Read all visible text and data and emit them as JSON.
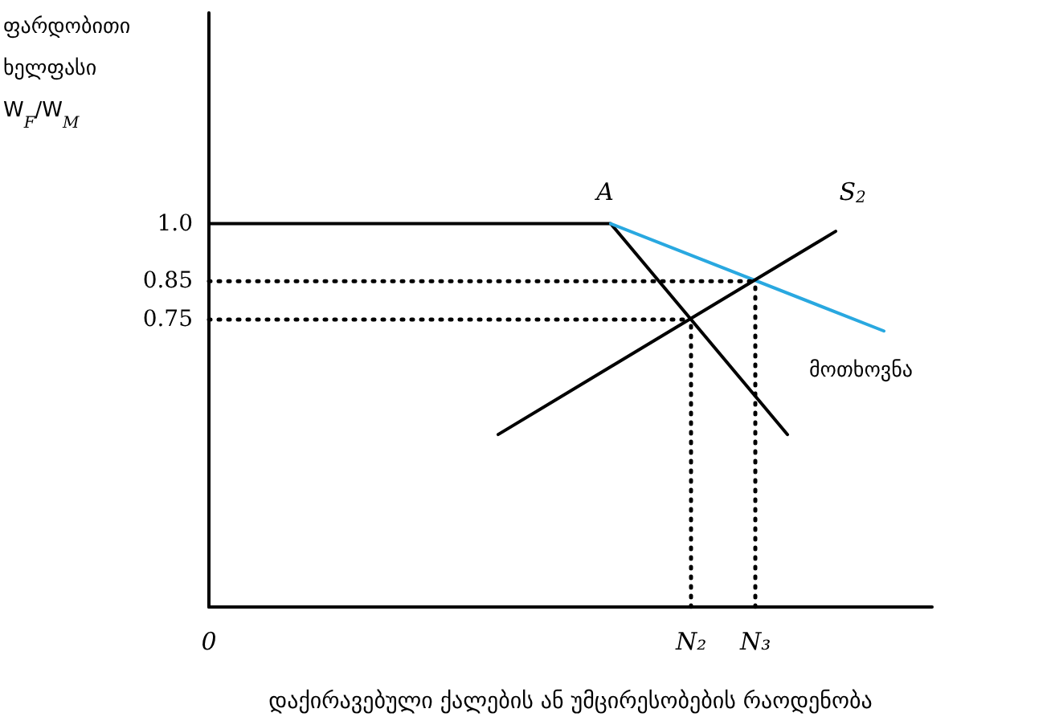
{
  "chart_data": {
    "type": "line",
    "xlabel": "დაქირავებული ქალების ან უმცირესობების რაოდენობა",
    "ylabel": "ფარდობითი\nხელფასი\nW$_{F}$/W$_{M}$",
    "categories": [
      "0",
      null,
      null,
      null,
      null,
      null,
      null,
      null,
      null,
      null,
      null,
      null,
      null,
      null,
      null,
      null,
      null,
      null,
      null,
      null,
      null,
      null,
      null,
      null,
      null,
      null,
      null,
      null,
      null,
      null,
      "N₂",
      null,
      null,
      null,
      "N₃",
      null,
      null,
      null,
      null,
      null,
      null,
      null,
      null,
      null,
      null,
      null
    ],
    "ylim": [
      0,
      1.55
    ],
    "yticks": [
      {
        "value": 0.75,
        "label": "0.75"
      },
      {
        "value": 0.85,
        "label": "0.85"
      },
      {
        "value": 1,
        "label": "1.0"
      }
    ],
    "grid": false,
    "series": [
      {
        "color": "#000000",
        "values": [
          1,
          null,
          null,
          null,
          null,
          null,
          null,
          null,
          null,
          null,
          null,
          null,
          null,
          null,
          null,
          null,
          null,
          null,
          null,
          null,
          null,
          null,
          null,
          null,
          null,
          1,
          null,
          null,
          null,
          null,
          null,
          null,
          null,
          null,
          null,
          null,
          0.45,
          null,
          null,
          null,
          null,
          null,
          null,
          null,
          null,
          null
        ]
      },
      {
        "color": "#29a8e0",
        "values": [
          null,
          null,
          null,
          null,
          null,
          null,
          null,
          null,
          null,
          null,
          null,
          null,
          null,
          null,
          null,
          null,
          null,
          null,
          null,
          null,
          null,
          null,
          null,
          null,
          null,
          1,
          null,
          null,
          null,
          null,
          null,
          null,
          null,
          null,
          null,
          null,
          null,
          null,
          null,
          null,
          null,
          null,
          0.72,
          null,
          null,
          null
        ]
      },
      {
        "color": "#000000",
        "values": [
          null,
          null,
          null,
          null,
          null,
          null,
          null,
          null,
          null,
          null,
          null,
          null,
          null,
          null,
          null,
          null,
          null,
          null,
          0.45,
          null,
          null,
          null,
          null,
          null,
          null,
          null,
          null,
          null,
          null,
          null,
          null,
          null,
          null,
          null,
          null,
          null,
          null,
          null,
          null,
          0.98,
          null,
          null,
          null,
          null,
          null,
          null
        ]
      },
      {
        "color": "#000000",
        "line_style": "dotted",
        "values": [
          0.85,
          null,
          null,
          null,
          null,
          null,
          null,
          null,
          null,
          null,
          null,
          null,
          null,
          null,
          null,
          null,
          null,
          null,
          null,
          null,
          null,
          null,
          null,
          null,
          null,
          null,
          null,
          null,
          null,
          null,
          null,
          null,
          null,
          null,
          0.85,
          null,
          null,
          null,
          null,
          null,
          null,
          null,
          null,
          null,
          null,
          null
        ]
      },
      {
        "color": "#000000",
        "line_style": "dotted",
        "values": [
          0.75,
          null,
          null,
          null,
          null,
          null,
          null,
          null,
          null,
          null,
          null,
          null,
          null,
          null,
          null,
          null,
          null,
          null,
          null,
          null,
          null,
          null,
          null,
          null,
          null,
          null,
          null,
          null,
          null,
          null,
          0.75,
          null,
          null,
          null,
          null,
          null,
          null,
          null,
          null,
          null,
          null,
          null,
          null,
          null,
          null,
          null
        ]
      },
      {
        "color": "#000000",
        "line_style": "dotted",
        "x": [
          "N₂",
          "N₂"
        ],
        "values": [
          0,
          0.75
        ]
      },
      {
        "color": "#000000",
        "line_style": "dotted",
        "x": [
          "N₃",
          "N₃"
        ],
        "values": [
          0,
          0.85
        ]
      }
    ],
    "annotations": [
      "A",
      "S$_{2}$",
      "მოთხოვნა"
    ]
  }
}
